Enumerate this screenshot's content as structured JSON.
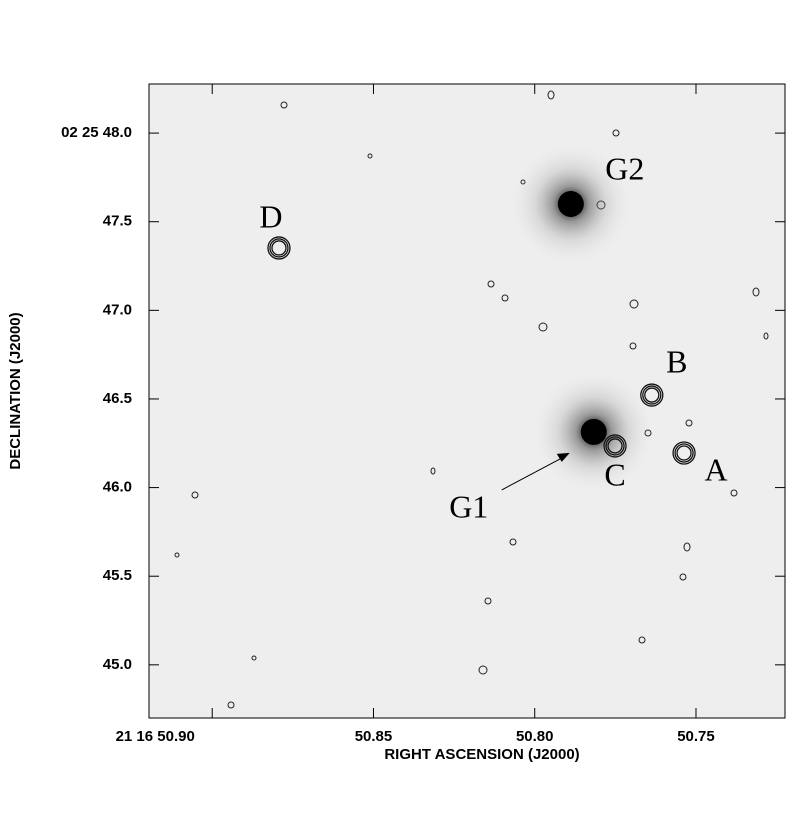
{
  "chart_data": {
    "type": "image",
    "xlabel": "RIGHT ASCENSION (J2000)",
    "ylabel": "DECLINATION (J2000)",
    "xlim": [
      50.9196,
      50.7224
    ],
    "ylim": [
      44.7,
      48.277
    ],
    "xticks": [
      {
        "value": 50.9,
        "label": "21 16 50.90"
      },
      50.85,
      {
        "value": 50.8,
        "label": "50.80"
      },
      50.75
    ],
    "yticks": [
      {
        "value": 48.0,
        "label": "02 25 48.0"
      },
      47.5,
      {
        "value": 47.0,
        "label": "47.0"
      },
      46.5,
      {
        "value": 46.0,
        "label": "46.0"
      },
      45.5,
      {
        "value": 45.0,
        "label": "45.0"
      }
    ],
    "galaxies": [
      {
        "label": "G1",
        "x": 50.7817,
        "y": 46.314
      },
      {
        "label": "G2",
        "x": 50.7888,
        "y": 47.6
      }
    ],
    "contour_sources": [
      {
        "label": "A",
        "x": 50.7537,
        "y": 46.195
      },
      {
        "label": "B",
        "x": 50.7637,
        "y": 46.522
      },
      {
        "label": "C",
        "x": 50.7751,
        "y": 46.235
      },
      {
        "label": "D",
        "x": 50.8793,
        "y": 47.352
      }
    ]
  }
}
